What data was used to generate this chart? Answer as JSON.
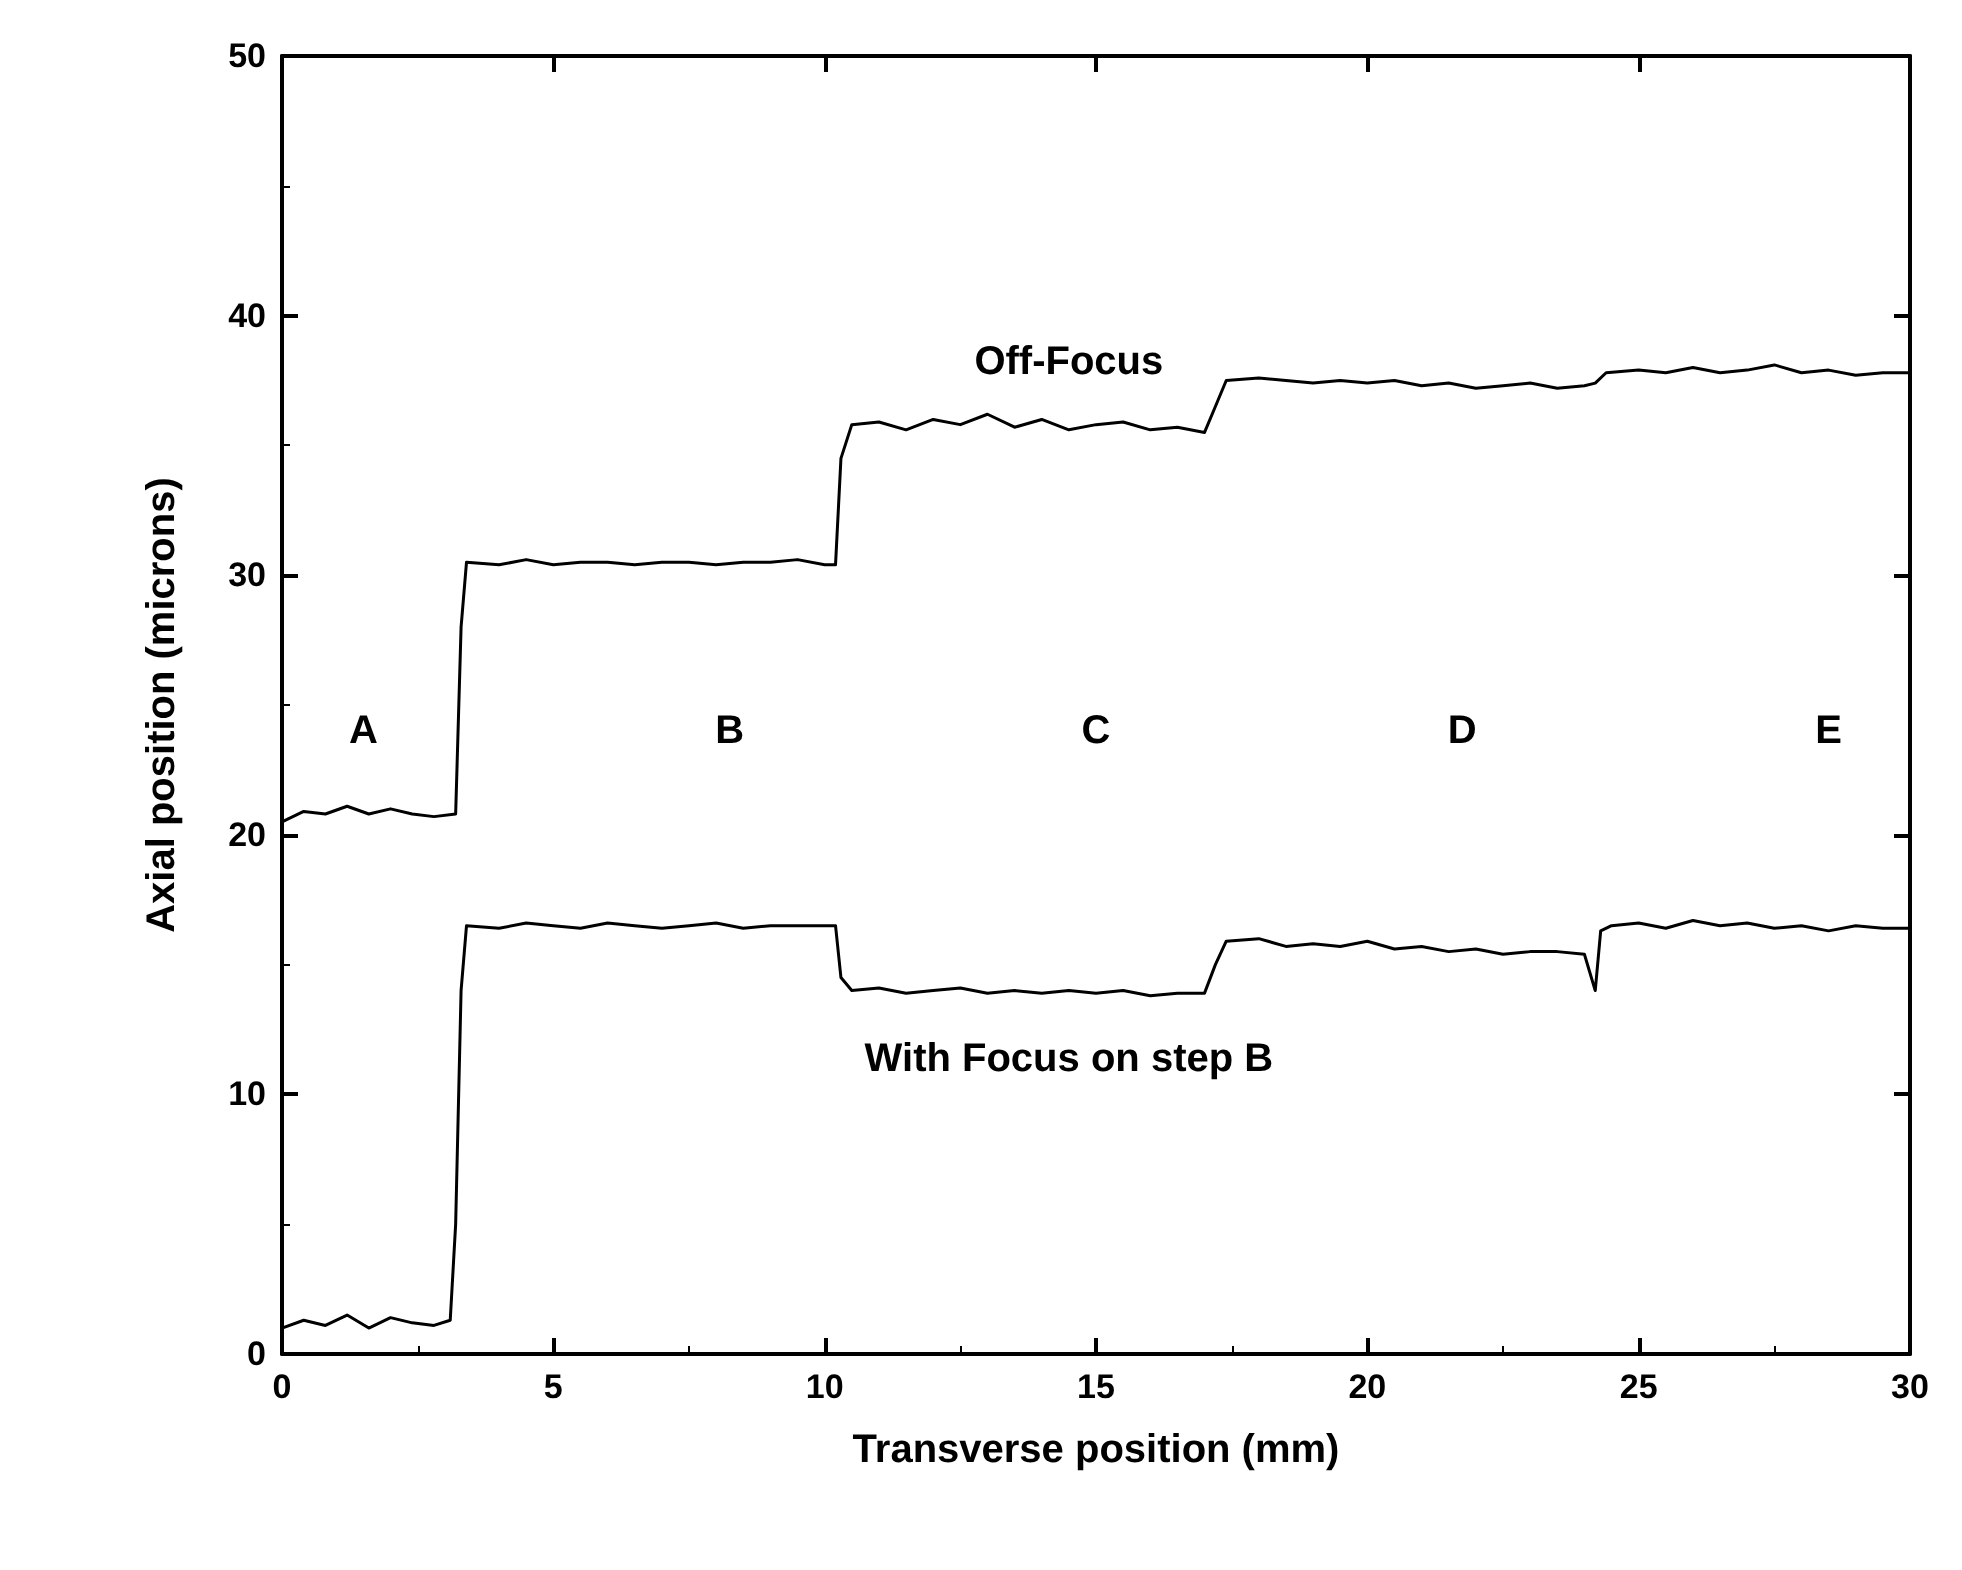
{
  "chart_data": {
    "type": "line",
    "xlabel": "Transverse position (mm)",
    "ylabel": "Axial position (microns)",
    "xlim": [
      0,
      30
    ],
    "xticks": [
      0,
      5,
      10,
      15,
      20,
      25,
      30
    ],
    "ylim": [
      0,
      50
    ],
    "yticks": [
      0,
      10,
      20,
      30,
      40,
      50
    ],
    "grid": false,
    "marker": "none",
    "line_style": "solid",
    "series": [
      {
        "name": "Off-Focus",
        "color": "#000000",
        "x": [
          0,
          0.4,
          0.8,
          1.2,
          1.6,
          2.0,
          2.4,
          2.8,
          3.2,
          3.3,
          3.4,
          4.0,
          4.5,
          5.0,
          5.5,
          6.0,
          6.5,
          7.0,
          7.5,
          8.0,
          8.5,
          9.0,
          9.5,
          10.0,
          10.2,
          10.3,
          10.5,
          11.0,
          11.5,
          12.0,
          12.5,
          13.0,
          13.5,
          14.0,
          14.5,
          15.0,
          15.5,
          16.0,
          16.5,
          17.0,
          17.2,
          17.4,
          18.0,
          18.5,
          19.0,
          19.5,
          20.0,
          20.5,
          21.0,
          21.5,
          22.0,
          22.5,
          23.0,
          23.5,
          24.0,
          24.2,
          24.4,
          25.0,
          25.5,
          26.0,
          26.5,
          27.0,
          27.5,
          28.0,
          28.5,
          29.0,
          29.5,
          30.0
        ],
        "values": [
          20.5,
          20.9,
          20.8,
          21.1,
          20.8,
          21.0,
          20.8,
          20.7,
          20.8,
          28.0,
          30.5,
          30.4,
          30.6,
          30.4,
          30.5,
          30.5,
          30.4,
          30.5,
          30.5,
          30.4,
          30.5,
          30.5,
          30.6,
          30.4,
          30.4,
          34.5,
          35.8,
          35.9,
          35.6,
          36.0,
          35.8,
          36.2,
          35.7,
          36.0,
          35.6,
          35.8,
          35.9,
          35.6,
          35.7,
          35.5,
          36.5,
          37.5,
          37.6,
          37.5,
          37.4,
          37.5,
          37.4,
          37.5,
          37.3,
          37.4,
          37.2,
          37.3,
          37.4,
          37.2,
          37.3,
          37.4,
          37.8,
          37.9,
          37.8,
          38.0,
          37.8,
          37.9,
          38.1,
          37.8,
          37.9,
          37.7,
          37.8,
          37.8
        ]
      },
      {
        "name": "With Focus on step B",
        "color": "#000000",
        "x": [
          0,
          0.4,
          0.8,
          1.2,
          1.6,
          2.0,
          2.4,
          2.8,
          3.1,
          3.2,
          3.3,
          3.4,
          4.0,
          4.5,
          5.0,
          5.5,
          6.0,
          6.5,
          7.0,
          7.5,
          8.0,
          8.5,
          9.0,
          9.5,
          10.0,
          10.2,
          10.3,
          10.5,
          11.0,
          11.5,
          12.0,
          12.5,
          13.0,
          13.5,
          14.0,
          14.5,
          15.0,
          15.5,
          16.0,
          16.5,
          17.0,
          17.2,
          17.4,
          18.0,
          18.5,
          19.0,
          19.5,
          20.0,
          20.5,
          21.0,
          21.5,
          22.0,
          22.5,
          23.0,
          23.5,
          24.0,
          24.2,
          24.3,
          24.5,
          25.0,
          25.5,
          26.0,
          26.5,
          27.0,
          27.5,
          28.0,
          28.5,
          29.0,
          29.5,
          30.0
        ],
        "values": [
          1.0,
          1.3,
          1.1,
          1.5,
          1.0,
          1.4,
          1.2,
          1.1,
          1.3,
          5.0,
          14.0,
          16.5,
          16.4,
          16.6,
          16.5,
          16.4,
          16.6,
          16.5,
          16.4,
          16.5,
          16.6,
          16.4,
          16.5,
          16.5,
          16.5,
          16.5,
          14.5,
          14.0,
          14.1,
          13.9,
          14.0,
          14.1,
          13.9,
          14.0,
          13.9,
          14.0,
          13.9,
          14.0,
          13.8,
          13.9,
          13.9,
          15.0,
          15.9,
          16.0,
          15.7,
          15.8,
          15.7,
          15.9,
          15.6,
          15.7,
          15.5,
          15.6,
          15.4,
          15.5,
          15.5,
          15.4,
          14.0,
          16.3,
          16.5,
          16.6,
          16.4,
          16.7,
          16.5,
          16.6,
          16.4,
          16.5,
          16.3,
          16.5,
          16.4,
          16.4
        ]
      }
    ],
    "annotations": [
      "A",
      "B",
      "C",
      "D",
      "E"
    ]
  }
}
